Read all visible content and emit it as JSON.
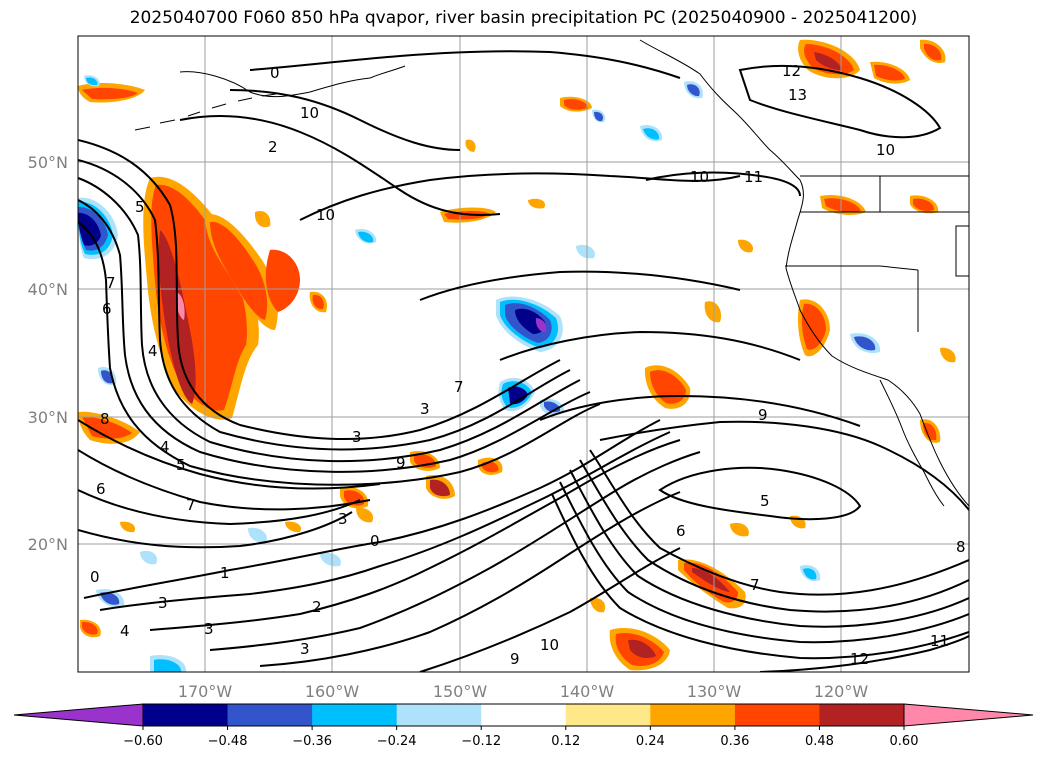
{
  "title": "2025040700 F060 850 hPa qvapor, river basin precipitation PC (2025040900 - 2025041200)",
  "map": {
    "lat_labels": [
      "50°N",
      "40°N",
      "30°N",
      "20°N"
    ],
    "lon_labels": [
      "170°W",
      "160°W",
      "150°W",
      "140°W",
      "130°W",
      "120°W"
    ],
    "ocean_color": "#ffffff",
    "grid_color": "#9e9e9e",
    "contour_color": "#000000",
    "contour_labels": [
      "0",
      "10",
      "2",
      "10",
      "5",
      "7",
      "6",
      "4",
      "7",
      "3",
      "3",
      "9",
      "8",
      "4",
      "5",
      "6",
      "7",
      "3",
      "0",
      "1",
      "2",
      "0",
      "3",
      "3",
      "3",
      "4",
      "5",
      "6",
      "7",
      "8",
      "9",
      "10",
      "11",
      "12",
      "13",
      "10",
      "11",
      "12",
      "9",
      "10"
    ]
  },
  "colorbar": {
    "tick_labels": [
      "−0.60",
      "−0.48",
      "−0.36",
      "−0.24",
      "−0.12",
      "0.12",
      "0.24",
      "0.36",
      "0.48",
      "0.60"
    ],
    "colors": [
      "#9933cc",
      "#00008b",
      "#3355cc",
      "#00bfff",
      "#aee2fb",
      "#ffffff",
      "#ffe88a",
      "#ffa500",
      "#ff4500",
      "#b22222",
      "#ff88aa"
    ]
  }
}
